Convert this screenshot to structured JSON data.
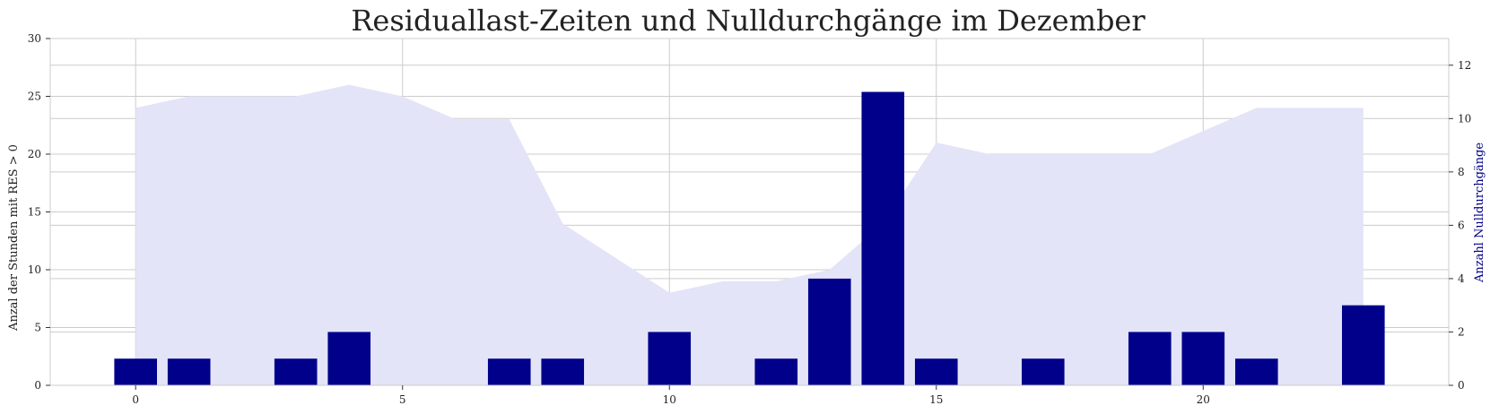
{
  "chart_data": {
    "type": "bar",
    "title": "Residuallast-Zeiten und Nulldurchgänge im Dezember",
    "xlabel": "",
    "x_ticks": [
      0,
      5,
      10,
      15,
      20
    ],
    "xlim": [
      -1.6,
      24.6
    ],
    "left_axis": {
      "label": "Anzal der Stunden mit RES > 0",
      "ylim": [
        0,
        30
      ],
      "ticks": [
        0,
        5,
        10,
        15,
        20,
        25,
        30
      ]
    },
    "right_axis": {
      "label": "Anzahl Nulldurchgänge",
      "ylim": [
        0,
        13
      ],
      "ticks": [
        0,
        2,
        4,
        6,
        8,
        10,
        12
      ]
    },
    "grid": true,
    "series": [
      {
        "type": "area",
        "axis": "left",
        "color": "#e3e4f7",
        "x": [
          0,
          1,
          2,
          3,
          4,
          5,
          6,
          7,
          8,
          9,
          10,
          11,
          12,
          13,
          14,
          15,
          16,
          17,
          18,
          19,
          20,
          21,
          22,
          23
        ],
        "values": [
          24,
          25,
          25,
          25,
          26,
          25,
          23,
          23,
          14,
          11,
          8,
          9,
          9,
          10,
          14,
          21,
          20,
          20,
          20,
          20,
          22,
          24,
          24,
          24
        ]
      },
      {
        "type": "bar",
        "axis": "right",
        "color": "#00008b",
        "x": [
          0,
          1,
          3,
          4,
          7,
          8,
          10,
          12,
          13,
          14,
          15,
          17,
          19,
          20,
          21,
          23
        ],
        "values": [
          1,
          1,
          1,
          2,
          1,
          1,
          2,
          1,
          4,
          11,
          1,
          1,
          2,
          2,
          1,
          3
        ]
      }
    ]
  }
}
